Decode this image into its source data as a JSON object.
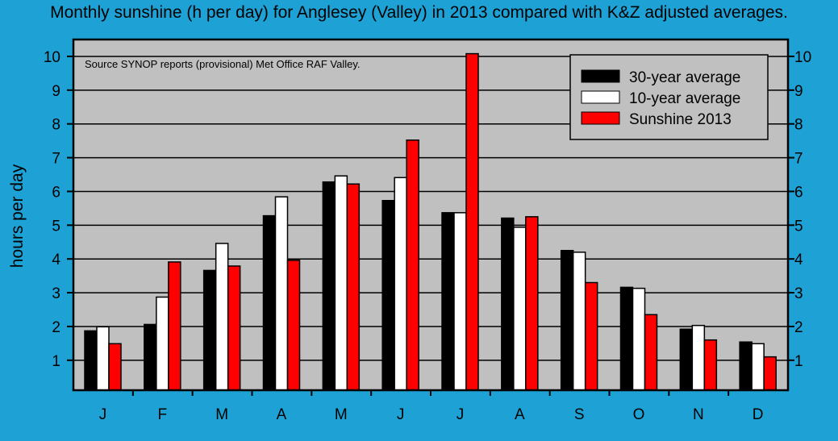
{
  "chart_data": {
    "type": "bar",
    "title": "Monthly sunshine (h per day) for Anglesey (Valley) in 2013 compared with K&Z adjusted averages.",
    "annotation": "Source SYNOP reports (provisional) Met Office RAF Valley.",
    "ylabel": "hours per day",
    "xlabel": "",
    "ylim": [
      0,
      10.5
    ],
    "yticks": [
      1,
      2,
      3,
      4,
      5,
      6,
      7,
      8,
      9,
      10
    ],
    "grid": true,
    "legend_position": "top-right",
    "categories": [
      "J",
      "F",
      "M",
      "A",
      "M",
      "J",
      "J",
      "A",
      "S",
      "O",
      "N",
      "D"
    ],
    "series": [
      {
        "name": "30-year average",
        "color": "#000000",
        "values": [
          1.87,
          2.06,
          3.66,
          5.28,
          6.28,
          5.73,
          5.37,
          5.21,
          4.25,
          3.16,
          1.92,
          1.54
        ]
      },
      {
        "name": "10-year average",
        "color": "#ffffff",
        "values": [
          1.99,
          2.87,
          4.46,
          5.84,
          6.46,
          6.41,
          5.37,
          4.94,
          4.2,
          3.13,
          2.03,
          1.49
        ]
      },
      {
        "name": "Sunshine 2013",
        "color": "#ff0000",
        "values": [
          1.49,
          3.91,
          3.79,
          3.96,
          6.22,
          7.52,
          10.08,
          5.25,
          3.3,
          2.35,
          1.6,
          1.1
        ]
      }
    ],
    "colors": {
      "background": "#1ea2d6",
      "plot_area": "#c0c0c0"
    }
  }
}
